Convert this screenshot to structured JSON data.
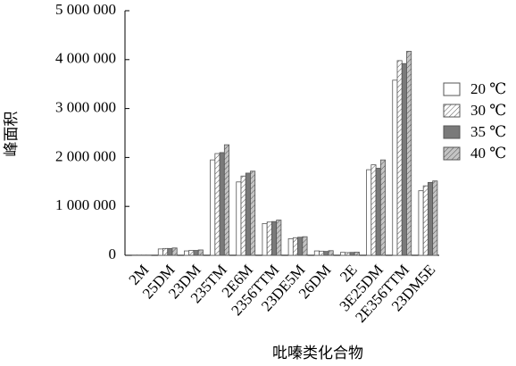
{
  "chart_data": {
    "type": "bar",
    "x_label": "吡嗪类化合物",
    "y_label": "峰面积",
    "categories": [
      "2M",
      "25DM",
      "23DM",
      "235TM",
      "2E6M",
      "2356TTM",
      "23DE5M",
      "26DM",
      "2E",
      "3E25DM",
      "2E356TTM",
      "23DM5E"
    ],
    "series": [
      {
        "name": "20 ℃",
        "color": "#ffffff",
        "hatch": false,
        "values": [
          5000,
          130000,
          90000,
          1950000,
          1500000,
          650000,
          340000,
          90000,
          60000,
          1750000,
          3580000,
          1320000
        ]
      },
      {
        "name": "30 ℃",
        "color": "#ffffff",
        "hatch": true,
        "values": [
          5000,
          140000,
          100000,
          2080000,
          1620000,
          680000,
          360000,
          85000,
          55000,
          1850000,
          3980000,
          1420000
        ]
      },
      {
        "name": "35 ℃",
        "color": "#7a7a7a",
        "hatch": false,
        "values": [
          5000,
          140000,
          100000,
          2100000,
          1680000,
          690000,
          370000,
          80000,
          60000,
          1780000,
          3920000,
          1490000
        ]
      },
      {
        "name": "40 ℃",
        "color": "#c4c4c4",
        "hatch": true,
        "values": [
          5000,
          150000,
          110000,
          2260000,
          1720000,
          720000,
          380000,
          95000,
          65000,
          1950000,
          4170000,
          1520000
        ]
      }
    ],
    "ylim": [
      0,
      5000000
    ],
    "yticks": [
      0,
      {
        "value": 1000000,
        "label": "1 000 000"
      },
      {
        "value": 2000000,
        "label": "2 000 000"
      },
      {
        "value": 3000000,
        "label": "3 000 000"
      },
      {
        "value": 4000000,
        "label": "4 000 000"
      },
      {
        "value": 5000000,
        "label": "5 000 000"
      }
    ],
    "grid": false,
    "legend": "right"
  }
}
